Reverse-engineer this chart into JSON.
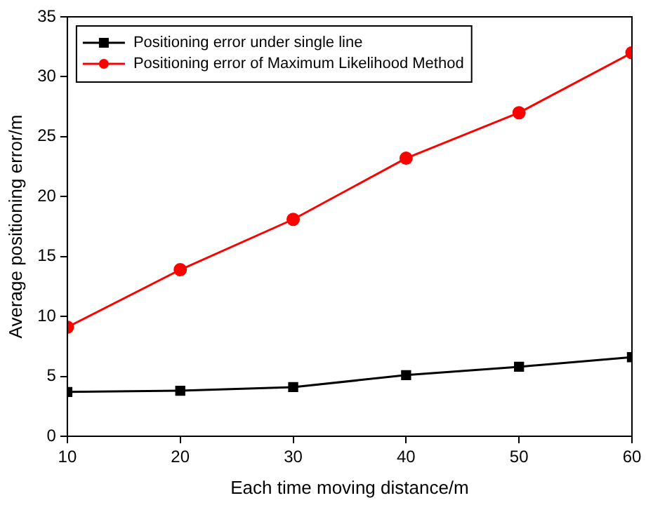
{
  "chart_data": {
    "type": "line",
    "xlabel": "Each time moving distance/m",
    "ylabel": "Average positioning error/m",
    "x": [
      10,
      20,
      30,
      40,
      50,
      60
    ],
    "series": [
      {
        "name": "Positioning error under single line",
        "color": "#000000",
        "marker": "square",
        "values": [
          3.7,
          3.8,
          4.1,
          5.1,
          5.8,
          6.6
        ]
      },
      {
        "name": "Positioning error of Maximum Likelihood Method",
        "color": "#ff0000",
        "marker": "circle",
        "values": [
          9.1,
          13.9,
          18.1,
          23.2,
          27.0,
          32.0
        ]
      }
    ],
    "xlim": [
      10,
      60
    ],
    "xticks": [
      10,
      20,
      30,
      40,
      50,
      60
    ],
    "ylim": [
      0,
      35
    ],
    "yticks": [
      0,
      5,
      10,
      15,
      20,
      25,
      30,
      35
    ],
    "grid": false,
    "legend": "top left",
    "line_style": "solid"
  }
}
